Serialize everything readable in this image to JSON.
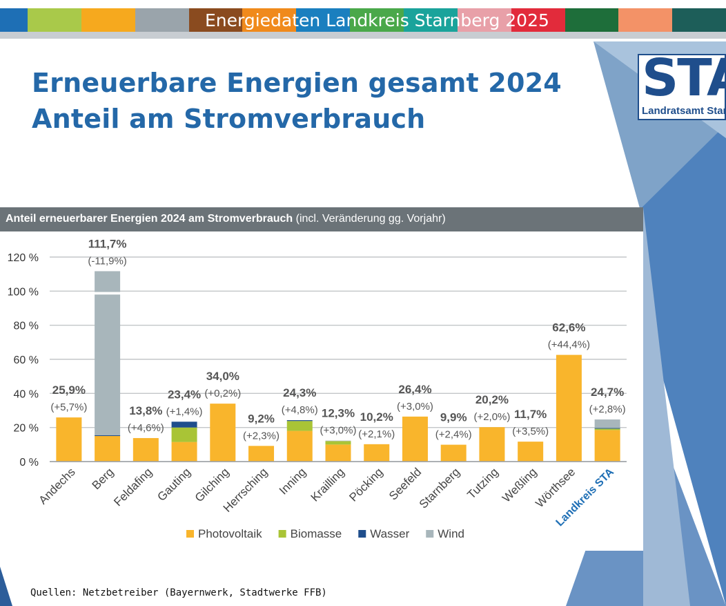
{
  "header": {
    "title": "Energiedaten Landkreis Starnberg 2025",
    "stripe_colors": [
      "#1e6fb5",
      "#a9c94a",
      "#f6a91e",
      "#9aa4ab",
      "#8a4b1f",
      "#f08a1c",
      "#1a7fbf",
      "#4aa84a",
      "#1aa39b",
      "#e8a0a8",
      "#e22b3b",
      "#1e6e3a",
      "#f39267",
      "#1d5e59"
    ]
  },
  "slide": {
    "title_line1": "Erneuerbare Energien gesamt 2024",
    "title_line2": "Anteil am Stromverbrauch"
  },
  "logo": {
    "big": "STA",
    "small": "Landratsamt Starnberg"
  },
  "chart_header": {
    "bold": "Anteil erneuerbarer Energien 2024 am Stromverbrauch",
    "normal": "(incl. Veränderung gg. Vorjahr)"
  },
  "chart_data": {
    "type": "bar",
    "stacked": true,
    "categories": [
      "Andechs",
      "Berg",
      "Feldafing",
      "Gauting",
      "Gilching",
      "Herrsching",
      "Inning",
      "Krailling",
      "Pöcking",
      "Seefeld",
      "Starnberg",
      "Tutzing",
      "Weßling",
      "Wörthsee",
      "Landkreis STA"
    ],
    "series": [
      {
        "name": "Photovoltaik",
        "color": "#f9b52c",
        "values": [
          25.9,
          15.0,
          13.8,
          11.5,
          34.0,
          9.2,
          18.0,
          10.0,
          10.2,
          26.4,
          9.9,
          20.2,
          11.7,
          62.6,
          18.5
        ]
      },
      {
        "name": "Biomasse",
        "color": "#a9c436",
        "values": [
          0,
          0,
          0,
          8.5,
          0,
          0,
          5.8,
          2.0,
          0,
          0,
          0,
          0,
          0,
          0,
          0.8
        ]
      },
      {
        "name": "Wasser",
        "color": "#1f4e8c",
        "values": [
          0,
          0.5,
          0,
          3.4,
          0,
          0,
          0.5,
          0,
          0,
          0,
          0,
          0,
          0,
          0,
          0.4
        ]
      },
      {
        "name": "Wind",
        "color": "#a8b6bb",
        "values": [
          0,
          96.2,
          0,
          0,
          0,
          0,
          0,
          0.3,
          0,
          0,
          0,
          0,
          0,
          0,
          5.0
        ]
      }
    ],
    "totals": [
      "25,9%",
      "111,7%",
      "13,8%",
      "23,4%",
      "34,0%",
      "9,2%",
      "24,3%",
      "12,3%",
      "10,2%",
      "26,4%",
      "9,9%",
      "20,2%",
      "11,7%",
      "62,6%",
      "24,7%"
    ],
    "changes": [
      "(+5,7%)",
      "(-11,9%)",
      "(+4,6%)",
      "(+1,4%)",
      "(+0,2%)",
      "(+2,3%)",
      "(+4,8%)",
      "(+3,0%)",
      "(+2,1%)",
      "(+3,0%)",
      "(+2,4%)",
      "(+2,0%)",
      "(+3,5%)",
      "(+44,4%)",
      "(+2,8%)"
    ],
    "yticks": [
      "0 %",
      "20 %",
      "40 %",
      "60 %",
      "80 %",
      "100 %",
      "120 %"
    ],
    "ylim": [
      0,
      120
    ],
    "axis_break": true,
    "highlight_category": "Landkreis STA",
    "highlight_color": "#1f6fb5",
    "grid": true,
    "legend_position": "bottom"
  },
  "footer": {
    "sources": "Quellen: Netzbetreiber (Bayernwerk, Stadtwerke FFB)"
  }
}
